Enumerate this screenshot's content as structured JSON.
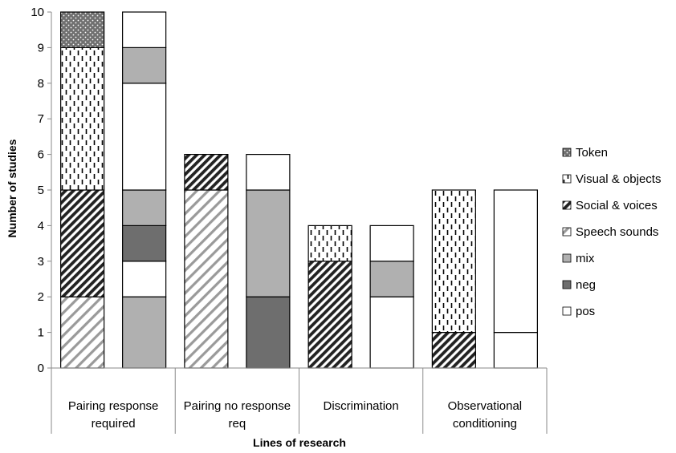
{
  "chart_data": {
    "type": "bar",
    "stacked": true,
    "title": "",
    "xlabel": "Lines of research",
    "ylabel": "Number of studies",
    "ylim": [
      0,
      10
    ],
    "yticks": [
      0,
      1,
      2,
      3,
      4,
      5,
      6,
      7,
      8,
      9,
      10
    ],
    "legend_position": "right",
    "grid": false,
    "categories": [
      [
        "Pairing response",
        "required"
      ],
      [
        "Pairing no response",
        "req"
      ],
      [
        "Discrimination"
      ],
      [
        "Observational",
        "conditioning"
      ]
    ],
    "groups": [
      {
        "category": 0,
        "bars": [
          {
            "segments": [
              {
                "series": "Speech sounds",
                "value": 2
              },
              {
                "series": "Social & voices",
                "value": 3
              },
              {
                "series": "Visual & objects",
                "value": 4
              },
              {
                "series": "Token",
                "value": 1
              }
            ]
          },
          {
            "segments": [
              {
                "series": "mix",
                "value": 2
              },
              {
                "series": "pos",
                "value": 1
              },
              {
                "series": "neg",
                "value": 1
              },
              {
                "series": "mix",
                "value": 1
              },
              {
                "series": "pos",
                "value": 3
              },
              {
                "series": "mix",
                "value": 1
              },
              {
                "series": "pos",
                "value": 1
              }
            ]
          }
        ]
      },
      {
        "category": 1,
        "bars": [
          {
            "segments": [
              {
                "series": "Speech sounds",
                "value": 5
              },
              {
                "series": "Social & voices",
                "value": 1
              }
            ]
          },
          {
            "segments": [
              {
                "series": "neg",
                "value": 2
              },
              {
                "series": "mix",
                "value": 3
              },
              {
                "series": "pos",
                "value": 1
              }
            ]
          }
        ]
      },
      {
        "category": 2,
        "bars": [
          {
            "segments": [
              {
                "series": "Social & voices",
                "value": 3
              },
              {
                "series": "Visual & objects",
                "value": 1
              }
            ]
          },
          {
            "segments": [
              {
                "series": "pos",
                "value": 2
              },
              {
                "series": "mix",
                "value": 1
              },
              {
                "series": "pos",
                "value": 1
              }
            ]
          }
        ]
      },
      {
        "category": 3,
        "bars": [
          {
            "segments": [
              {
                "series": "Social & voices",
                "value": 1
              },
              {
                "series": "Visual & objects",
                "value": 4
              }
            ]
          },
          {
            "segments": [
              {
                "series": "pos",
                "value": 1
              },
              {
                "series": "pos",
                "value": 4
              }
            ]
          }
        ]
      }
    ],
    "legend": [
      {
        "name": "Token",
        "fill": "dots-dark"
      },
      {
        "name": "Visual & objects",
        "fill": "dashes"
      },
      {
        "name": "Social & voices",
        "fill": "diagonal-dense"
      },
      {
        "name": "Speech sounds",
        "fill": "diagonal-light"
      },
      {
        "name": "mix",
        "fill": "#b0b0b0"
      },
      {
        "name": "neg",
        "fill": "#6e6e6e"
      },
      {
        "name": "pos",
        "fill": "#ffffff"
      }
    ]
  }
}
